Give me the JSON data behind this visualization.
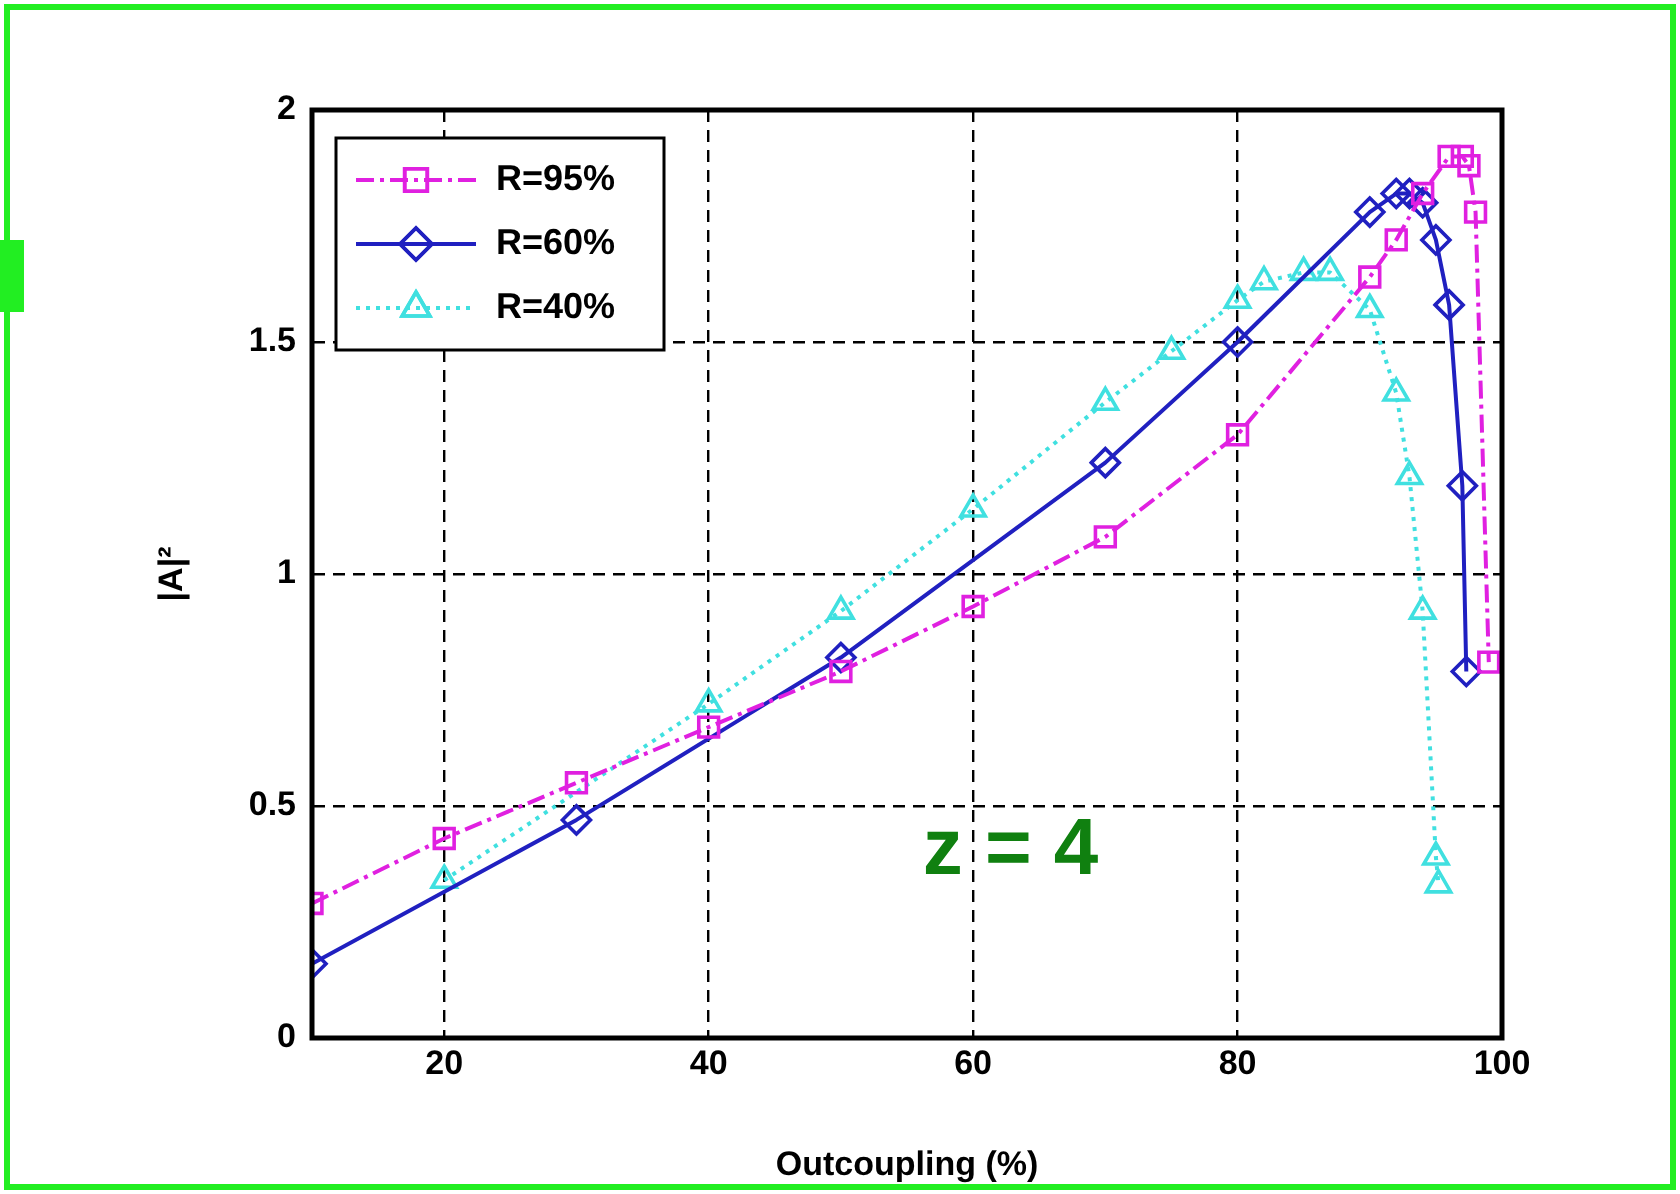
{
  "chart_data": {
    "type": "line",
    "xlabel": "Outcoupling (%)",
    "ylabel": "|A|²",
    "xlim": [
      10,
      100
    ],
    "xticks": [
      20,
      40,
      60,
      80,
      100
    ],
    "ylim": [
      0,
      2
    ],
    "yticks": [
      0,
      0.5,
      1,
      1.5,
      2
    ],
    "grid": true,
    "legend": "top left",
    "annotations": [
      "z = 4"
    ],
    "series": [
      {
        "name": "R=95%",
        "color": "#e020e0",
        "marker": "square",
        "line_style": "dashed",
        "x": [
          10,
          20,
          30,
          40,
          50,
          60,
          70,
          80,
          90,
          92,
          94,
          96,
          97,
          97.5,
          98,
          99
        ],
        "values": [
          0.29,
          0.43,
          0.55,
          0.67,
          0.79,
          0.93,
          1.08,
          1.3,
          1.64,
          1.72,
          1.82,
          1.9,
          1.9,
          1.88,
          1.78,
          0.81
        ]
      },
      {
        "name": "R=60%",
        "color": "#2020c0",
        "marker": "diamond",
        "line_style": "solid",
        "x": [
          10,
          30,
          50,
          70,
          80,
          90,
          92,
          93,
          94,
          95,
          96,
          97,
          97.3
        ],
        "values": [
          0.16,
          0.47,
          0.82,
          1.24,
          1.5,
          1.78,
          1.82,
          1.82,
          1.8,
          1.72,
          1.58,
          1.19,
          0.79
        ]
      },
      {
        "name": "R=40%",
        "color": "#40e0e0",
        "marker": "triangle",
        "line_style": "dotted",
        "x": [
          20,
          40,
          50,
          60,
          70,
          75,
          80,
          82,
          85,
          87,
          90,
          92,
          93,
          94,
          95,
          95.2
        ],
        "values": [
          0.34,
          0.72,
          0.92,
          1.14,
          1.37,
          1.48,
          1.59,
          1.63,
          1.65,
          1.65,
          1.57,
          1.39,
          1.21,
          0.92,
          0.39,
          0.33
        ]
      }
    ]
  }
}
